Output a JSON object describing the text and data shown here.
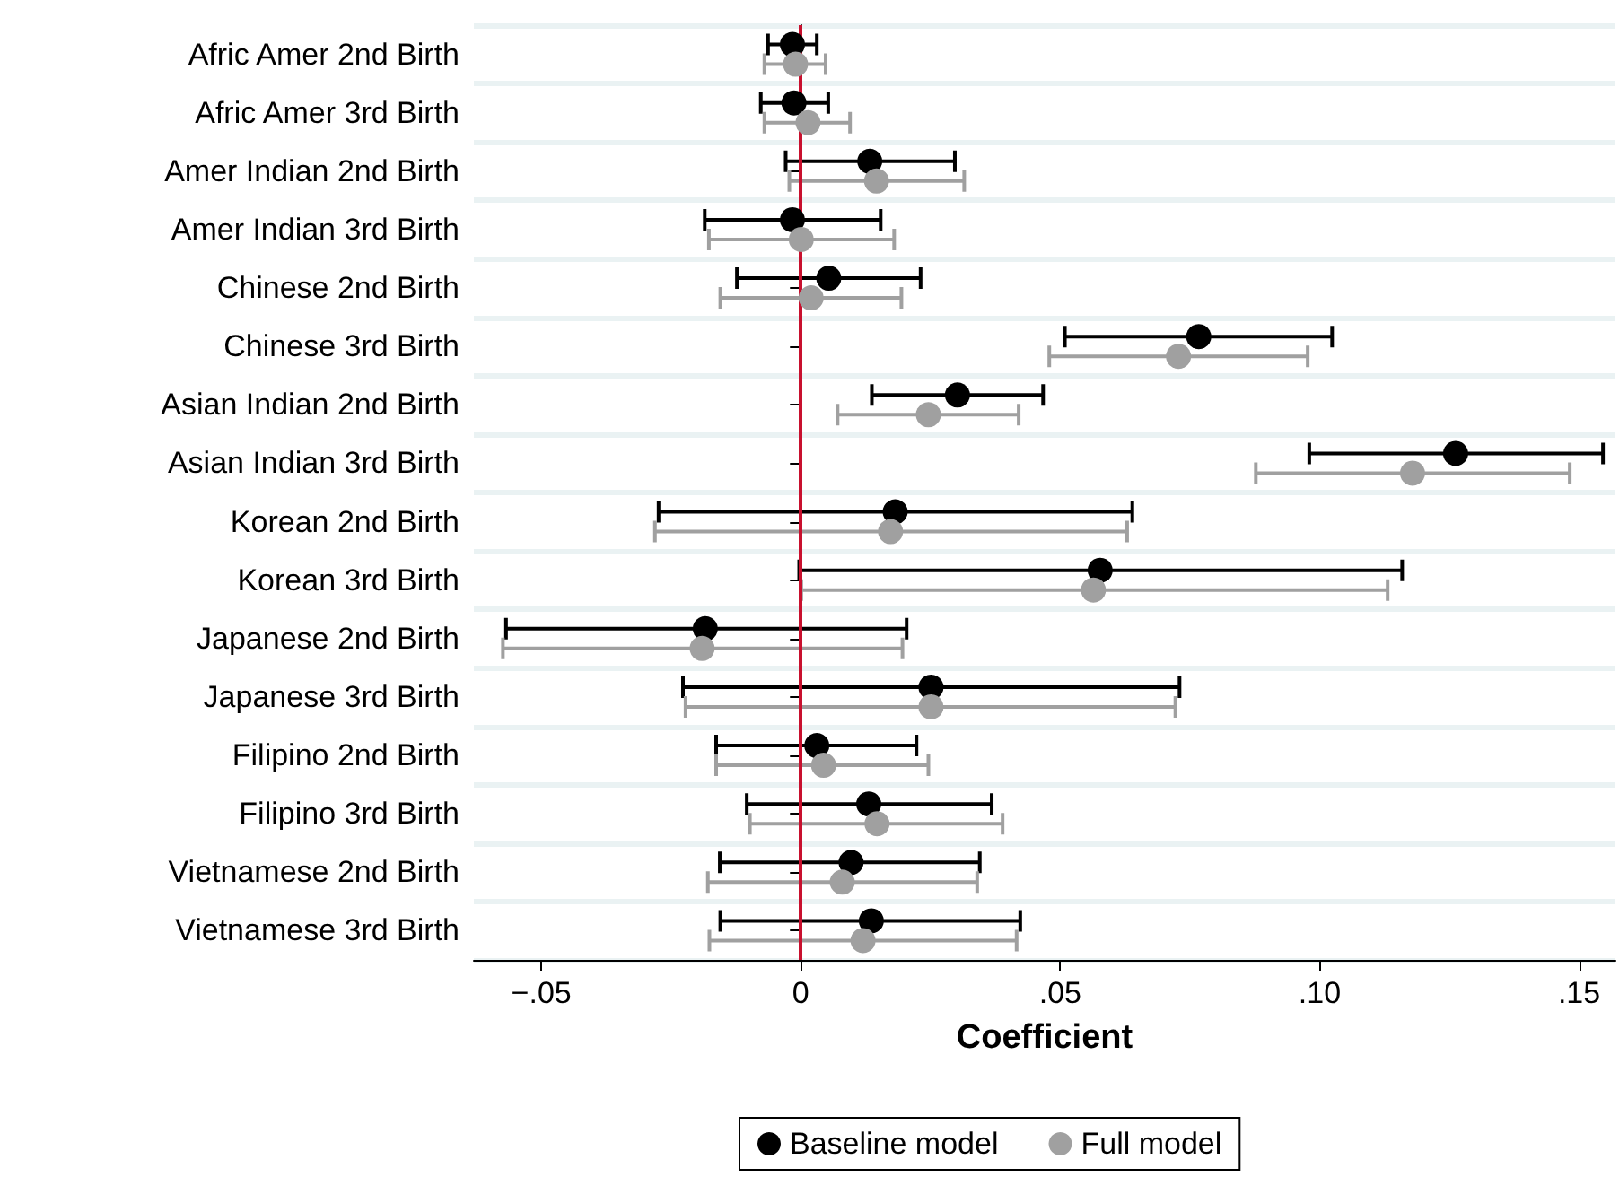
{
  "chart_data": {
    "type": "scatter",
    "orientation": "horizontal",
    "xlabel": "Coefficient",
    "categories": [
      "Afric Amer 2nd Birth",
      "Afric Amer 3rd Birth",
      "Amer Indian 2nd Birth",
      "Amer Indian 3rd Birth",
      "Chinese 2nd Birth",
      "Chinese 3rd Birth",
      "Asian Indian 2nd Birth",
      "Asian Indian 3rd Birth",
      "Korean 2nd Birth",
      "Korean 3rd Birth",
      "Japanese 2nd Birth",
      "Japanese 3rd Birth",
      "Filipino 2nd Birth",
      "Filipino 3rd Birth",
      "Vietnamese 2nd Birth",
      "Vietnamese 3rd Birth"
    ],
    "series": [
      {
        "name": "Baseline model",
        "color": "#000000",
        "values": [
          -0.0016,
          -0.0013,
          0.0133,
          -0.0016,
          0.0054,
          0.0767,
          0.0302,
          0.1262,
          0.0182,
          0.0577,
          -0.0184,
          0.0251,
          0.0031,
          0.0131,
          0.0097,
          0.0136
        ],
        "errors": [
          [
            -0.0063,
            0.0031
          ],
          [
            -0.0077,
            0.0053
          ],
          [
            -0.0029,
            0.0297
          ],
          [
            -0.0185,
            0.0154
          ],
          [
            -0.0123,
            0.0231
          ],
          [
            0.0509,
            0.1024
          ],
          [
            0.0137,
            0.0467
          ],
          [
            0.098,
            0.1546
          ],
          [
            -0.0274,
            0.0639
          ],
          [
            -0.0003,
            0.1159
          ],
          [
            -0.0568,
            0.0204
          ],
          [
            -0.0227,
            0.073
          ],
          [
            -0.0163,
            0.0223
          ],
          [
            -0.0104,
            0.0368
          ],
          [
            -0.0156,
            0.0345
          ],
          [
            -0.0155,
            0.0423
          ]
        ]
      },
      {
        "name": "Full model",
        "color": "#a0a0a0",
        "values": [
          -0.001,
          0.0014,
          0.0146,
          0.0001,
          0.002,
          0.0728,
          0.0246,
          0.1179,
          0.0173,
          0.0564,
          -0.019,
          0.0251,
          0.0044,
          0.0147,
          0.008,
          0.012
        ],
        "errors": [
          [
            -0.007,
            0.0048
          ],
          [
            -0.007,
            0.0095
          ],
          [
            -0.0022,
            0.0315
          ],
          [
            -0.0177,
            0.018
          ],
          [
            -0.0155,
            0.0194
          ],
          [
            0.0479,
            0.0977
          ],
          [
            0.0071,
            0.042
          ],
          [
            0.0877,
            0.1482
          ],
          [
            -0.0281,
            0.0629
          ],
          [
            0.0001,
            0.1131
          ],
          [
            -0.0574,
            0.0196
          ],
          [
            -0.0222,
            0.0722
          ],
          [
            -0.0163,
            0.0246
          ],
          [
            -0.0098,
            0.0389
          ],
          [
            -0.0179,
            0.034
          ],
          [
            -0.0176,
            0.0416
          ]
        ]
      }
    ],
    "xlim": [
      -0.063,
      0.157
    ],
    "xticks": [
      {
        "value": -0.05,
        "label": "−.05"
      },
      0,
      {
        "value": 0.05,
        "label": ".05"
      },
      {
        "value": 0.1,
        "label": ".10"
      },
      {
        "value": 0.15,
        "label": ".15"
      }
    ],
    "ref_lines": [
      {
        "axis": "x",
        "value": 0,
        "color": "#c8102e"
      }
    ],
    "grid": "y",
    "legend": "bottom",
    "marker": "circle"
  }
}
